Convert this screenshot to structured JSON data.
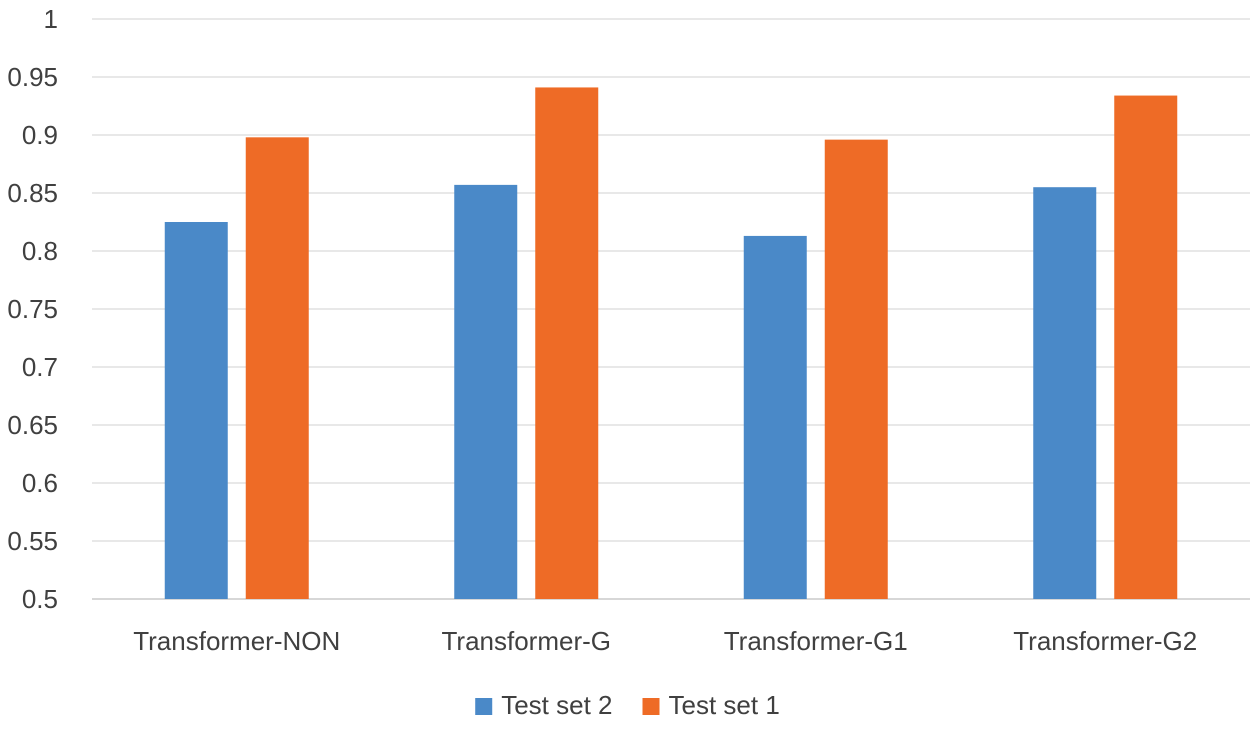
{
  "chart_data": {
    "type": "bar",
    "title": "",
    "xlabel": "",
    "ylabel": "",
    "categories": [
      "Transformer-NON",
      "Transformer-G",
      "Transformer-G1",
      "Transformer-G2"
    ],
    "series": [
      {
        "name": "Test set 2",
        "color": "#4a89c8",
        "values": [
          0.825,
          0.857,
          0.813,
          0.855
        ]
      },
      {
        "name": "Test set 1",
        "color": "#ee6b26",
        "values": [
          0.898,
          0.941,
          0.896,
          0.934
        ]
      }
    ],
    "ylim": [
      0.5,
      1
    ],
    "yticks": [
      "0.5",
      "0.55",
      "0.6",
      "0.65",
      "0.7",
      "0.75",
      "0.8",
      "0.85",
      "0.9",
      "0.95",
      "1"
    ],
    "grid": true,
    "legend_position": "bottom-center"
  }
}
